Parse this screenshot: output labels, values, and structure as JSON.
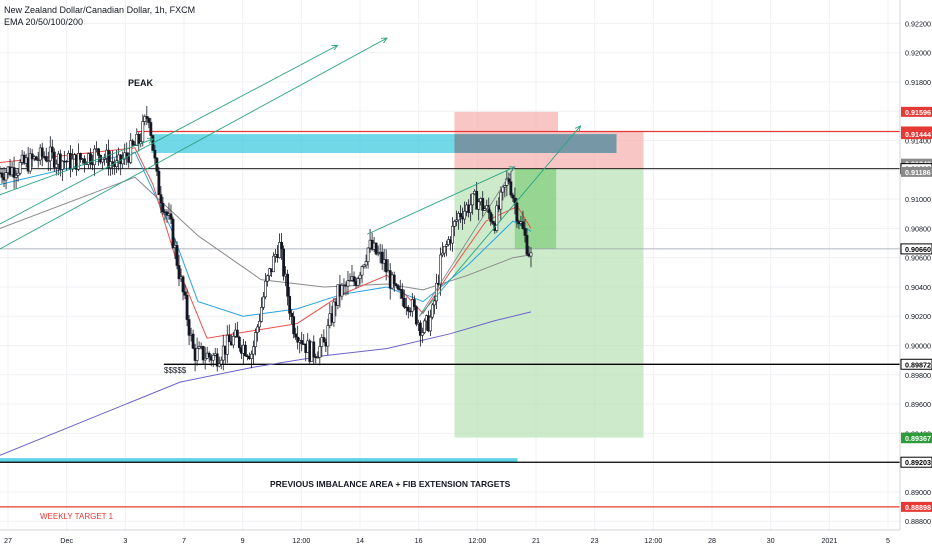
{
  "header": {
    "symbol_line": "New Zealand Dollar/Canadian Dollar, 1h, FXCM",
    "indicator_line": "EMA 20/50/100/200"
  },
  "annotations": {
    "peak": "PEAK",
    "dollar_signs": "$$$$$",
    "imbalance_note": "PREVIOUS IMBALANCE AREA + FIB EXTENSION TARGETS",
    "weekly_target": "WEEKLY TARGET 1"
  },
  "colors": {
    "background": "#ffffff",
    "grid": "#eef0f3",
    "bull_candle": "#ffffff",
    "bear_candle": "#131722",
    "wick": "#131722",
    "ema20": "#e8514a",
    "ema50": "#29a3e0",
    "ema100": "#8a8a8a",
    "ema200": "#6b62c9",
    "trend_arrow": "#2aa37f",
    "imbalance_zone": "#35c7dd",
    "stop_zone": "#f7b3b3",
    "target_zone": "#b8e3b4",
    "red_level": "#e53935",
    "black_level": "#000000",
    "axis_text": "#131722"
  },
  "chart_data": {
    "type": "candlestick",
    "title": "New Zealand Dollar/Canadian Dollar, 1h, FXCM",
    "y_range": [
      0.8874,
      0.9236
    ],
    "x_ticks": [
      "27",
      "Dec",
      "3",
      "7",
      "9",
      "12:00",
      "14",
      "16",
      "12:00",
      "21",
      "23",
      "12:00",
      "28",
      "30",
      "2021",
      "5"
    ],
    "y_ticks": [
      "0.92200",
      "0.92000",
      "0.91800",
      "0.91600",
      "0.91400",
      "0.91200",
      "0.91000",
      "0.90800",
      "0.90600",
      "0.90400",
      "0.90200",
      "0.90000",
      "0.89800",
      "0.89600",
      "0.89400",
      "0.89200",
      "0.89000",
      "0.88800"
    ],
    "y_tick_values": [
      0.922,
      0.92,
      0.918,
      0.916,
      0.914,
      0.912,
      0.91,
      0.908,
      0.906,
      0.904,
      0.902,
      0.9,
      0.898,
      0.896,
      0.894,
      0.892,
      0.89,
      0.888
    ],
    "price_labels": [
      {
        "text": "0.91596",
        "value": 0.91596,
        "color": "#e53935"
      },
      {
        "text": "0.91462",
        "value": 0.91462,
        "color": "#e53935"
      },
      {
        "text": "0.91444",
        "value": 0.91444,
        "color": "#e53935"
      },
      {
        "text": "0.91242",
        "value": 0.91242,
        "color": "#8a8a8a"
      },
      {
        "text": "0.91208",
        "value": 0.91208,
        "color": "#000000"
      },
      {
        "text": "0.91186",
        "value": 0.91186,
        "color": "#8a8a8a"
      },
      {
        "text": "0.90660",
        "value": 0.9066,
        "color": "#000000"
      },
      {
        "text": "0.89872",
        "value": 0.89872,
        "color": "#000000"
      },
      {
        "text": "0.89371",
        "value": 0.89371,
        "color": "#2e9b3a"
      },
      {
        "text": "0.89367",
        "value": 0.89367,
        "color": "#2e9b3a"
      },
      {
        "text": "0.89203",
        "value": 0.89203,
        "color": "#000000"
      },
      {
        "text": "0.88898",
        "value": 0.88898,
        "color": "#e53935"
      }
    ],
    "path_knots": [
      [
        0.0,
        0.9118
      ],
      [
        0.02,
        0.9122
      ],
      [
        0.05,
        0.913
      ],
      [
        0.08,
        0.9125
      ],
      [
        0.11,
        0.9132
      ],
      [
        0.13,
        0.9122
      ],
      [
        0.155,
        0.914
      ],
      [
        0.165,
        0.916
      ],
      [
        0.175,
        0.911
      ],
      [
        0.19,
        0.908
      ],
      [
        0.205,
        0.903
      ],
      [
        0.215,
        0.8995
      ],
      [
        0.24,
        0.8992
      ],
      [
        0.26,
        0.9005
      ],
      [
        0.28,
        0.8995
      ],
      [
        0.295,
        0.904
      ],
      [
        0.31,
        0.907
      ],
      [
        0.325,
        0.9015
      ],
      [
        0.345,
        0.8995
      ],
      [
        0.36,
        0.9
      ],
      [
        0.375,
        0.9035
      ],
      [
        0.395,
        0.9045
      ],
      [
        0.41,
        0.9068
      ],
      [
        0.425,
        0.9058
      ],
      [
        0.44,
        0.9035
      ],
      [
        0.455,
        0.903
      ],
      [
        0.47,
        0.901
      ],
      [
        0.48,
        0.902
      ],
      [
        0.49,
        0.9058
      ],
      [
        0.51,
        0.909
      ],
      [
        0.53,
        0.91
      ],
      [
        0.55,
        0.9085
      ],
      [
        0.565,
        0.9115
      ],
      [
        0.575,
        0.909
      ],
      [
        0.585,
        0.907
      ],
      [
        0.59,
        0.906
      ]
    ],
    "ema_knots": {
      "ema20": [
        [
          0.0,
          0.9125
        ],
        [
          0.15,
          0.9135
        ],
        [
          0.17,
          0.911
        ],
        [
          0.2,
          0.905
        ],
        [
          0.23,
          0.9005
        ],
        [
          0.28,
          0.901
        ],
        [
          0.33,
          0.9015
        ],
        [
          0.38,
          0.9035
        ],
        [
          0.43,
          0.9048
        ],
        [
          0.47,
          0.9022
        ],
        [
          0.5,
          0.905
        ],
        [
          0.54,
          0.9085
        ],
        [
          0.575,
          0.9095
        ],
        [
          0.59,
          0.908
        ]
      ],
      "ema50": [
        [
          0.0,
          0.911
        ],
        [
          0.15,
          0.9132
        ],
        [
          0.19,
          0.908
        ],
        [
          0.22,
          0.903
        ],
        [
          0.27,
          0.902
        ],
        [
          0.33,
          0.9025
        ],
        [
          0.38,
          0.9035
        ],
        [
          0.43,
          0.904
        ],
        [
          0.47,
          0.903
        ],
        [
          0.52,
          0.9055
        ],
        [
          0.57,
          0.9085
        ],
        [
          0.59,
          0.9078
        ]
      ],
      "ema100": [
        [
          0.0,
          0.908
        ],
        [
          0.15,
          0.9115
        ],
        [
          0.22,
          0.9075
        ],
        [
          0.29,
          0.9045
        ],
        [
          0.36,
          0.904
        ],
        [
          0.43,
          0.9042
        ],
        [
          0.47,
          0.9038
        ],
        [
          0.52,
          0.9048
        ],
        [
          0.57,
          0.906
        ],
        [
          0.59,
          0.9062
        ]
      ],
      "ema200": [
        [
          0.0,
          0.8925
        ],
        [
          0.1,
          0.895
        ],
        [
          0.2,
          0.8975
        ],
        [
          0.28,
          0.8985
        ],
        [
          0.36,
          0.8993
        ],
        [
          0.43,
          0.8998
        ],
        [
          0.5,
          0.9008
        ],
        [
          0.55,
          0.9017
        ],
        [
          0.59,
          0.9023
        ]
      ]
    },
    "imbalance_zone": {
      "y_top": 0.91444,
      "y_bottom": 0.91315
    },
    "short_position": {
      "entry": 0.91208,
      "stop": 0.91462,
      "stop_top": 0.91596,
      "target": 0.89371
    },
    "levels": [
      0.91462,
      0.91208,
      0.9066,
      0.89872,
      0.89203,
      0.88898
    ]
  }
}
